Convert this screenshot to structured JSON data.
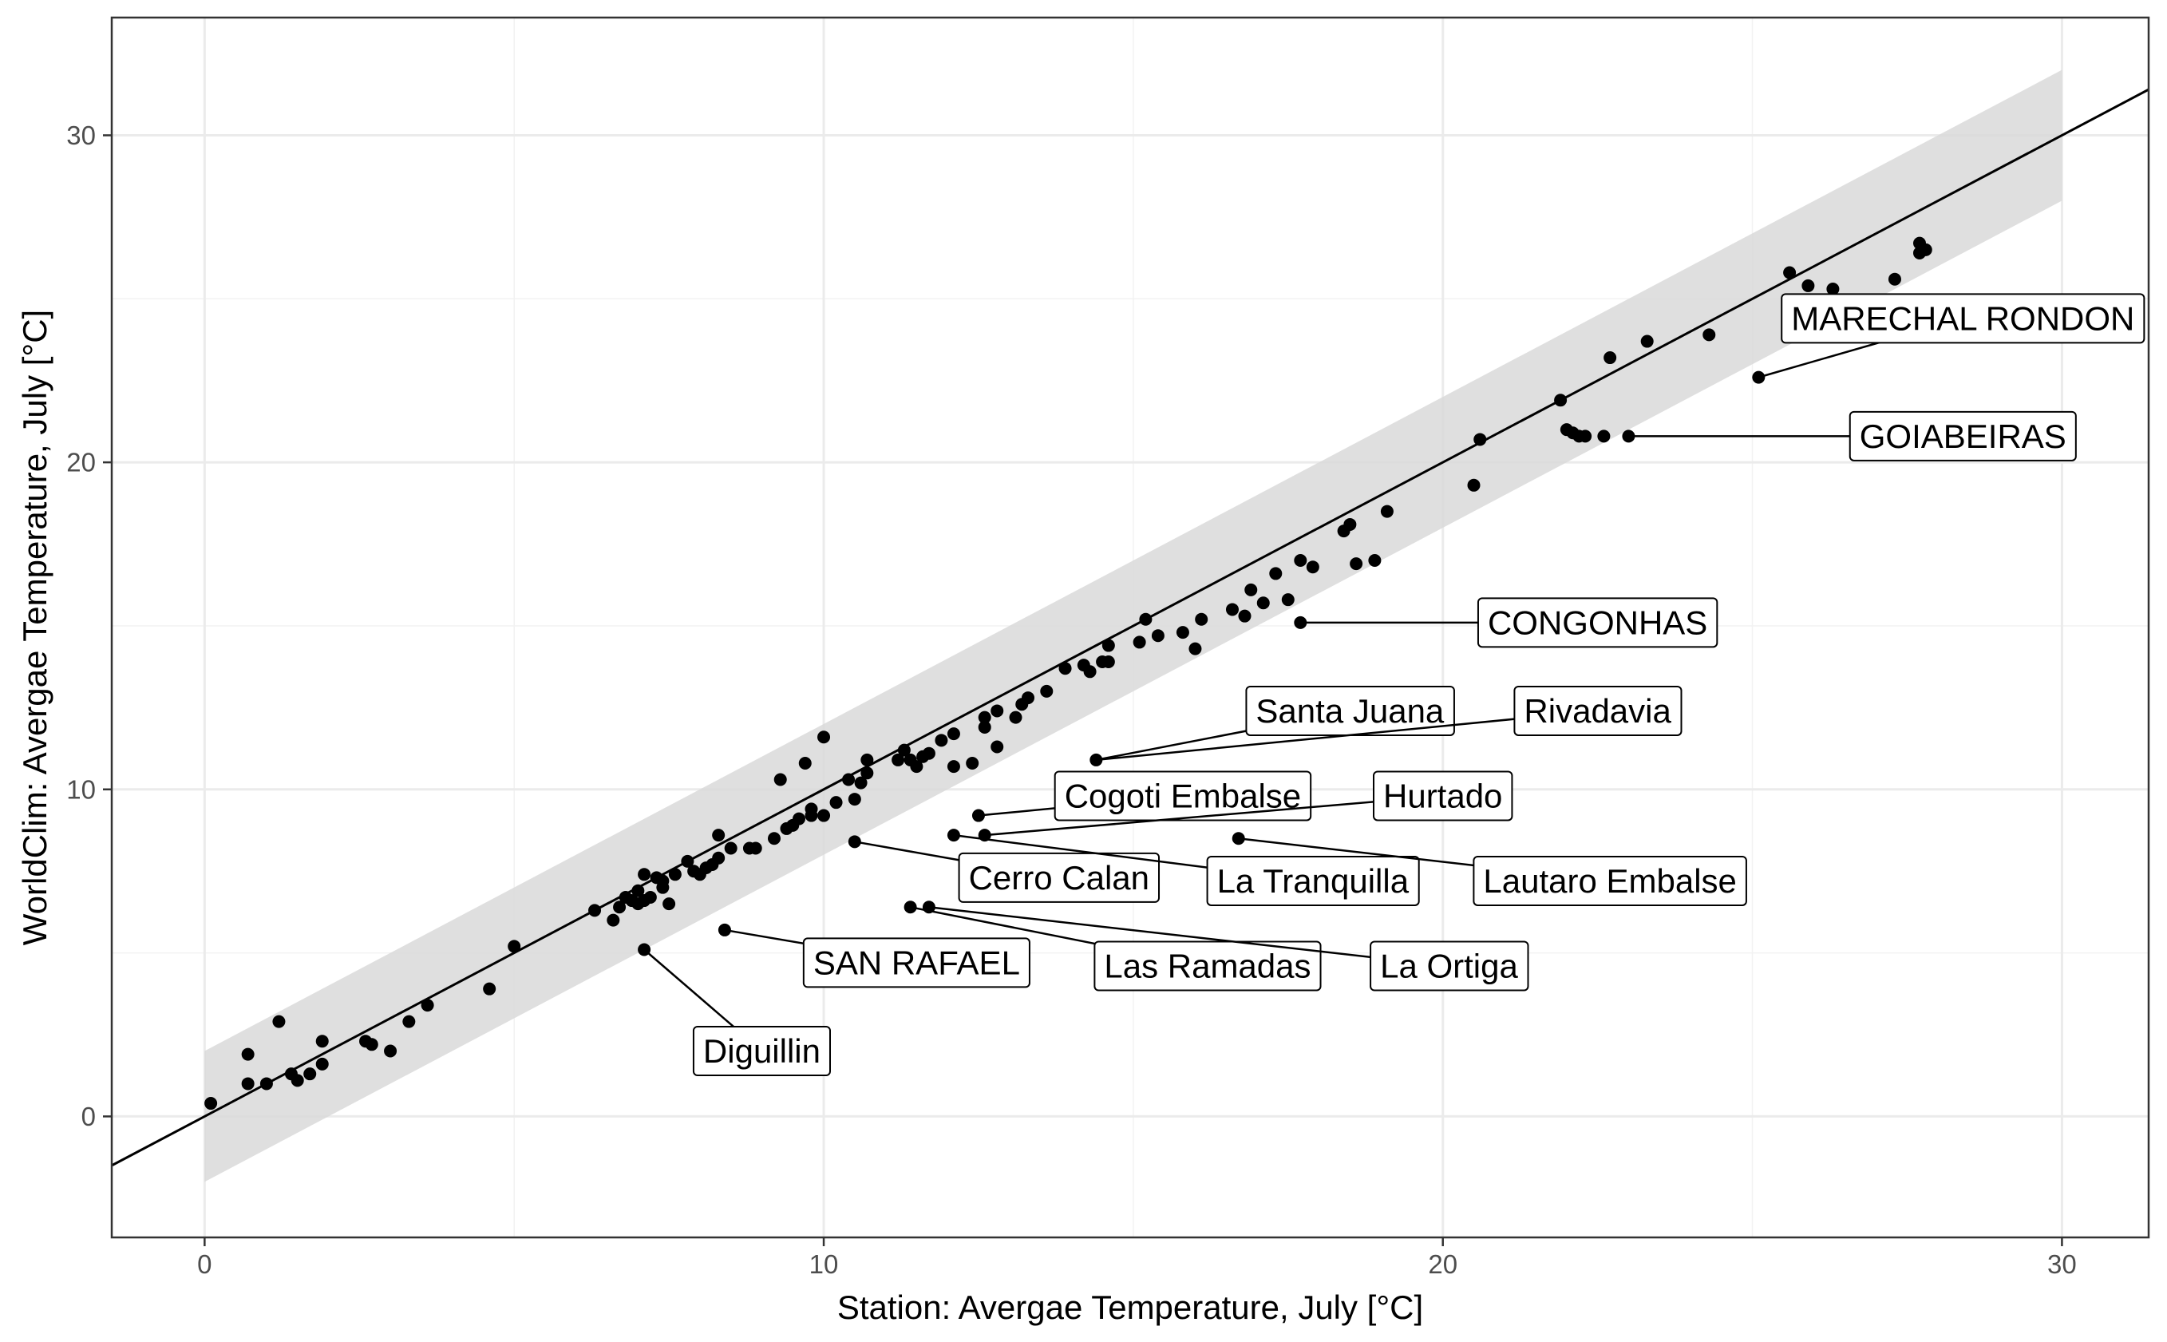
{
  "chart_data": {
    "type": "scatter",
    "title": "",
    "xlabel": "Station: Avergae Temperature, July [°C]",
    "ylabel": "WorldClim: Avergae Temperature, July [°C]",
    "xlim": [
      -1.5,
      31.4
    ],
    "ylim": [
      -3.7,
      33.6
    ],
    "x_ticks": [
      0,
      10,
      20,
      30
    ],
    "y_ticks": [
      0,
      10,
      20,
      30
    ],
    "x_tick_labels": [
      "0",
      "10",
      "20",
      "30"
    ],
    "y_tick_labels": [
      "0",
      "10",
      "20",
      "30"
    ],
    "grid": true,
    "identity_line": {
      "slope": 1,
      "intercept": 0
    },
    "tolerance_band": {
      "x_range": [
        0,
        30
      ],
      "offset": 2
    },
    "points": [
      [
        0.1,
        0.4
      ],
      [
        0.7,
        1.0
      ],
      [
        0.7,
        1.9
      ],
      [
        1.0,
        1.0
      ],
      [
        1.2,
        2.9
      ],
      [
        1.4,
        1.3
      ],
      [
        1.5,
        1.1
      ],
      [
        1.7,
        1.3
      ],
      [
        1.9,
        2.3
      ],
      [
        1.9,
        1.6
      ],
      [
        2.6,
        2.3
      ],
      [
        2.7,
        2.2
      ],
      [
        3.0,
        2.0
      ],
      [
        3.3,
        2.9
      ],
      [
        3.6,
        3.4
      ],
      [
        4.6,
        3.9
      ],
      [
        5.0,
        5.2
      ],
      [
        6.3,
        6.3
      ],
      [
        6.6,
        6.0
      ],
      [
        6.7,
        6.4
      ],
      [
        6.8,
        6.7
      ],
      [
        6.9,
        6.6
      ],
      [
        7.0,
        6.5
      ],
      [
        7.0,
        6.9
      ],
      [
        7.1,
        6.6
      ],
      [
        7.1,
        7.4
      ],
      [
        7.2,
        6.7
      ],
      [
        7.3,
        7.3
      ],
      [
        7.4,
        7.2
      ],
      [
        7.4,
        7.0
      ],
      [
        7.5,
        6.5
      ],
      [
        7.6,
        7.4
      ],
      [
        7.8,
        7.8
      ],
      [
        7.9,
        7.5
      ],
      [
        8.0,
        7.4
      ],
      [
        8.1,
        7.6
      ],
      [
        8.2,
        7.7
      ],
      [
        8.3,
        8.6
      ],
      [
        8.3,
        7.9
      ],
      [
        8.5,
        8.2
      ],
      [
        8.8,
        8.2
      ],
      [
        8.9,
        8.2
      ],
      [
        9.2,
        8.5
      ],
      [
        9.4,
        8.8
      ],
      [
        9.5,
        8.9
      ],
      [
        9.6,
        9.1
      ],
      [
        9.8,
        9.2
      ],
      [
        9.8,
        9.4
      ],
      [
        10.0,
        9.2
      ],
      [
        9.3,
        10.3
      ],
      [
        9.7,
        10.8
      ],
      [
        10.0,
        11.6
      ],
      [
        10.2,
        9.6
      ],
      [
        10.5,
        9.7
      ],
      [
        10.6,
        10.2
      ],
      [
        10.7,
        10.5
      ],
      [
        10.7,
        10.9
      ],
      [
        10.4,
        10.3
      ],
      [
        11.2,
        10.9
      ],
      [
        11.3,
        11.2
      ],
      [
        11.4,
        10.9
      ],
      [
        11.5,
        10.7
      ],
      [
        11.6,
        11.0
      ],
      [
        11.7,
        11.1
      ],
      [
        11.9,
        11.5
      ],
      [
        12.1,
        11.7
      ],
      [
        12.1,
        10.7
      ],
      [
        12.4,
        10.8
      ],
      [
        12.6,
        11.9
      ],
      [
        12.6,
        12.2
      ],
      [
        12.8,
        11.3
      ],
      [
        12.8,
        12.4
      ],
      [
        13.1,
        12.2
      ],
      [
        13.2,
        12.6
      ],
      [
        13.3,
        12.8
      ],
      [
        13.6,
        13.0
      ],
      [
        13.9,
        13.7
      ],
      [
        14.2,
        13.8
      ],
      [
        14.3,
        13.6
      ],
      [
        14.5,
        13.9
      ],
      [
        14.6,
        14.4
      ],
      [
        14.6,
        13.9
      ],
      [
        15.1,
        14.5
      ],
      [
        15.2,
        15.2
      ],
      [
        15.4,
        14.7
      ],
      [
        15.8,
        14.8
      ],
      [
        16.0,
        14.3
      ],
      [
        16.1,
        15.2
      ],
      [
        16.6,
        15.5
      ],
      [
        16.8,
        15.3
      ],
      [
        16.9,
        16.1
      ],
      [
        17.1,
        15.7
      ],
      [
        17.3,
        16.6
      ],
      [
        17.5,
        15.8
      ],
      [
        17.7,
        17.0
      ],
      [
        17.9,
        16.8
      ],
      [
        18.4,
        17.9
      ],
      [
        18.5,
        18.1
      ],
      [
        18.6,
        16.9
      ],
      [
        18.9,
        17.0
      ],
      [
        19.1,
        18.5
      ],
      [
        20.5,
        19.3
      ],
      [
        20.6,
        20.7
      ],
      [
        21.9,
        21.9
      ],
      [
        22.0,
        21.0
      ],
      [
        22.1,
        20.9
      ],
      [
        22.2,
        20.8
      ],
      [
        22.3,
        20.8
      ],
      [
        22.6,
        20.8
      ],
      [
        22.7,
        23.2
      ],
      [
        23.3,
        23.7
      ],
      [
        24.3,
        23.9
      ],
      [
        25.6,
        25.8
      ],
      [
        25.9,
        25.4
      ],
      [
        26.3,
        25.3
      ],
      [
        27.3,
        25.6
      ],
      [
        27.7,
        26.7
      ],
      [
        27.7,
        26.4
      ],
      [
        27.8,
        26.5
      ],
      [
        25.1,
        22.6
      ],
      [
        23.0,
        20.8
      ],
      [
        17.7,
        15.1
      ],
      [
        14.4,
        10.9
      ],
      [
        12.5,
        9.2
      ],
      [
        12.1,
        8.6
      ],
      [
        12.6,
        8.6
      ],
      [
        16.7,
        8.5
      ],
      [
        10.5,
        8.4
      ],
      [
        11.4,
        6.4
      ],
      [
        11.7,
        6.4
      ],
      [
        8.4,
        5.7
      ],
      [
        7.1,
        5.1
      ]
    ],
    "annotations": [
      {
        "label": "MARECHAL RONDON",
        "x": 25.1,
        "y": 22.6,
        "label_x": 28.4,
        "label_y": 24.4
      },
      {
        "label": "GOIABEIRAS",
        "x": 23.0,
        "y": 20.8,
        "label_x": 28.4,
        "label_y": 20.8
      },
      {
        "label": "CONGONHAS",
        "x": 17.7,
        "y": 15.1,
        "label_x": 22.5,
        "label_y": 15.1
      },
      {
        "label": "Santa Juana",
        "x": 14.4,
        "y": 10.9,
        "label_x": 18.5,
        "label_y": 12.4
      },
      {
        "label": "Rivadavia",
        "x": 14.4,
        "y": 10.9,
        "label_x": 22.5,
        "label_y": 12.4
      },
      {
        "label": "Cogoti Embalse",
        "x": 12.5,
        "y": 9.2,
        "label_x": 15.8,
        "label_y": 9.8
      },
      {
        "label": "Hurtado",
        "x": 12.6,
        "y": 8.6,
        "label_x": 20.0,
        "label_y": 9.8
      },
      {
        "label": "Cerro Calan",
        "x": 10.5,
        "y": 8.4,
        "label_x": 13.8,
        "label_y": 7.3
      },
      {
        "label": "La Tranquilla",
        "x": 12.1,
        "y": 8.6,
        "label_x": 17.9,
        "label_y": 7.2
      },
      {
        "label": "Lautaro Embalse",
        "x": 16.7,
        "y": 8.5,
        "label_x": 22.7,
        "label_y": 7.2
      },
      {
        "label": "SAN RAFAEL",
        "x": 8.4,
        "y": 5.7,
        "label_x": 11.5,
        "label_y": 4.7
      },
      {
        "label": "Las Ramadas",
        "x": 11.4,
        "y": 6.4,
        "label_x": 16.2,
        "label_y": 4.6
      },
      {
        "label": "La Ortiga",
        "x": 11.7,
        "y": 6.4,
        "label_x": 20.1,
        "label_y": 4.6
      },
      {
        "label": "Diguillin",
        "x": 7.1,
        "y": 5.1,
        "label_x": 9.0,
        "label_y": 2.0
      }
    ]
  }
}
